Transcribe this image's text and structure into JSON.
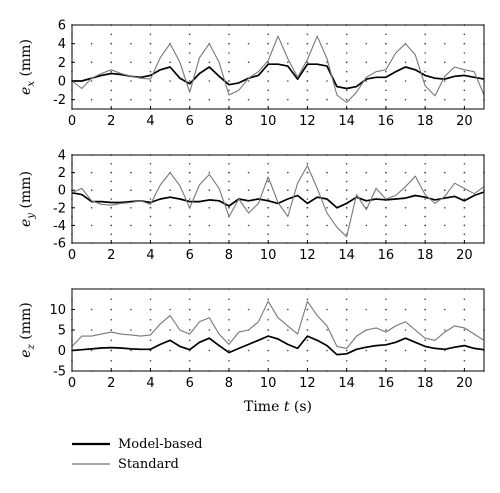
{
  "chart_data": [
    {
      "type": "line",
      "ylabel_var": "e",
      "ylabel_sub": "x",
      "ylabel_unit": " (mm)",
      "xlim": [
        0,
        21
      ],
      "ylim": [
        -3,
        6
      ],
      "xticks": [
        0,
        2,
        4,
        6,
        8,
        10,
        12,
        14,
        16,
        18,
        20
      ],
      "yticks": [
        -2,
        0,
        2,
        4,
        6
      ],
      "grid": "dotted",
      "series": [
        {
          "name": "Model-based",
          "color": "#000000",
          "x": [
            0,
            0.5,
            1,
            1.5,
            2,
            2.5,
            3,
            3.5,
            4,
            4.5,
            5,
            5.5,
            6,
            6.5,
            7,
            7.5,
            8,
            8.5,
            9,
            9.5,
            10,
            10.5,
            11,
            11.5,
            12,
            12.5,
            13,
            13.5,
            14,
            14.5,
            15,
            15.5,
            16,
            16.5,
            17,
            17.5,
            18,
            18.5,
            19,
            19.5,
            20,
            20.5,
            21
          ],
          "y": [
            0,
            0,
            0.3,
            0.6,
            0.8,
            0.7,
            0.5,
            0.4,
            0.6,
            1.2,
            1.5,
            0.3,
            -0.3,
            0.8,
            1.5,
            0.5,
            -0.4,
            -0.2,
            0.3,
            0.6,
            1.8,
            1.8,
            1.6,
            0.2,
            1.8,
            1.8,
            1.6,
            -0.6,
            -0.8,
            -0.6,
            0.2,
            0.4,
            0.4,
            1.0,
            1.5,
            1.2,
            0.6,
            0.3,
            0.2,
            0.5,
            0.6,
            0.4,
            0.2
          ]
        },
        {
          "name": "Standard",
          "color": "#777777",
          "x": [
            0,
            0.5,
            1,
            1.5,
            2,
            2.5,
            3,
            3.5,
            4,
            4.5,
            5,
            5.5,
            6,
            6.5,
            7,
            7.5,
            8,
            8.5,
            9,
            9.5,
            10,
            10.5,
            11,
            11.5,
            12,
            12.5,
            13,
            13.5,
            14,
            14.5,
            15,
            15.5,
            16,
            16.5,
            17,
            17.5,
            18,
            18.5,
            19,
            19.5,
            20,
            20.5,
            21
          ],
          "y": [
            0,
            -0.8,
            0.3,
            0.8,
            1.2,
            0.8,
            0.5,
            0.3,
            0.2,
            2.5,
            4.0,
            2.0,
            -1.2,
            2.5,
            4.0,
            2.0,
            -1.5,
            -1.0,
            0.3,
            1.0,
            2.2,
            4.8,
            2.4,
            0.4,
            2.3,
            4.8,
            2.4,
            -1.5,
            -2.3,
            -1.2,
            0.4,
            1.0,
            1.2,
            3.0,
            4.0,
            2.8,
            -0.5,
            -1.6,
            0.5,
            1.5,
            1.2,
            1.0,
            -1.5
          ]
        }
      ]
    },
    {
      "type": "line",
      "ylabel_var": "e",
      "ylabel_sub": "y",
      "ylabel_unit": " (mm)",
      "xlim": [
        0,
        21
      ],
      "ylim": [
        -6,
        4
      ],
      "xticks": [
        0,
        2,
        4,
        6,
        8,
        10,
        12,
        14,
        16,
        18,
        20
      ],
      "yticks": [
        -6,
        -4,
        -2,
        0,
        2,
        4
      ],
      "grid": "dotted",
      "series": [
        {
          "name": "Model-based",
          "color": "#000000",
          "x": [
            0,
            0.5,
            1,
            1.5,
            2,
            2.5,
            3,
            3.5,
            4,
            4.5,
            5,
            5.5,
            6,
            6.5,
            7,
            7.5,
            8,
            8.5,
            9,
            9.5,
            10,
            10.5,
            11,
            11.5,
            12,
            12.5,
            13,
            13.5,
            14,
            14.5,
            15,
            15.5,
            16,
            16.5,
            17,
            17.5,
            18,
            18.5,
            19,
            19.5,
            20,
            20.5,
            21
          ],
          "y": [
            -0.3,
            -0.5,
            -1.3,
            -1.3,
            -1.4,
            -1.4,
            -1.3,
            -1.2,
            -1.4,
            -1.0,
            -0.8,
            -1.0,
            -1.3,
            -1.3,
            -1.1,
            -1.2,
            -1.8,
            -1.0,
            -1.2,
            -1.0,
            -1.2,
            -1.5,
            -1.0,
            -0.6,
            -1.5,
            -0.8,
            -1.0,
            -2.0,
            -1.5,
            -0.8,
            -1.2,
            -1.0,
            -1.1,
            -1.0,
            -0.9,
            -0.6,
            -0.8,
            -1.1,
            -0.9,
            -0.7,
            -1.2,
            -0.6,
            -0.2
          ]
        },
        {
          "name": "Standard",
          "color": "#777777",
          "x": [
            0,
            0.5,
            1,
            1.5,
            2,
            2.5,
            3,
            3.5,
            4,
            4.5,
            5,
            5.5,
            6,
            6.5,
            7,
            7.5,
            8,
            8.5,
            9,
            9.5,
            10,
            10.5,
            11,
            11.5,
            12,
            12.5,
            13,
            13.5,
            14,
            14.5,
            15,
            15.5,
            16,
            16.5,
            17,
            17.5,
            18,
            18.5,
            19,
            19.5,
            20,
            20.5,
            21
          ],
          "y": [
            -0.3,
            0.2,
            -1.2,
            -1.6,
            -1.7,
            -1.5,
            -1.4,
            -1.2,
            -1.6,
            0.6,
            2.0,
            0.5,
            -2.0,
            0.6,
            1.8,
            0.2,
            -3.0,
            -1.0,
            -2.6,
            -1.5,
            1.5,
            -1.4,
            -3.0,
            0.8,
            2.8,
            0.2,
            -2.6,
            -4.2,
            -5.3,
            -0.5,
            -2.2,
            0.2,
            -1.0,
            -0.6,
            0.4,
            1.6,
            -0.5,
            -1.5,
            -0.7,
            0.8,
            0.2,
            -0.4,
            0.4
          ]
        }
      ]
    },
    {
      "type": "line",
      "ylabel_var": "e",
      "ylabel_sub": "z",
      "ylabel_unit": " (mm)",
      "xlabel_prefix": "Time ",
      "xlabel_var": "t",
      "xlabel_unit": " (s)",
      "xlim": [
        0,
        21
      ],
      "ylim": [
        -5,
        15
      ],
      "xticks": [
        0,
        2,
        4,
        6,
        8,
        10,
        12,
        14,
        16,
        18,
        20
      ],
      "yticks": [
        -5,
        0,
        5,
        10
      ],
      "grid": "dotted",
      "series": [
        {
          "name": "Model-based",
          "color": "#000000",
          "x": [
            0,
            0.5,
            1,
            1.5,
            2,
            2.5,
            3,
            3.5,
            4,
            4.5,
            5,
            5.5,
            6,
            6.5,
            7,
            7.5,
            8,
            8.5,
            9,
            9.5,
            10,
            10.5,
            11,
            11.5,
            12,
            12.5,
            13,
            13.5,
            14,
            14.5,
            15,
            15.5,
            16,
            16.5,
            17,
            17.5,
            18,
            18.5,
            19,
            19.5,
            20,
            20.5,
            21
          ],
          "y": [
            0,
            0.2,
            0.4,
            0.6,
            0.7,
            0.6,
            0.4,
            0.3,
            0.3,
            1.5,
            2.5,
            1.0,
            0.2,
            2.0,
            3.0,
            1.2,
            -0.5,
            0.5,
            1.5,
            2.5,
            3.5,
            2.8,
            1.5,
            0.5,
            3.5,
            2.5,
            1.2,
            -1.0,
            -0.8,
            0.3,
            0.8,
            1.2,
            1.4,
            2.0,
            3.0,
            2.0,
            1.0,
            0.5,
            0.3,
            0.8,
            1.2,
            0.5,
            0.2
          ]
        },
        {
          "name": "Standard",
          "color": "#777777",
          "x": [
            0,
            0.5,
            1,
            1.5,
            2,
            2.5,
            3,
            3.5,
            4,
            4.5,
            5,
            5.5,
            6,
            6.5,
            7,
            7.5,
            8,
            8.5,
            9,
            9.5,
            10,
            10.5,
            11,
            11.5,
            12,
            12.5,
            13,
            13.5,
            14,
            14.5,
            15,
            15.5,
            16,
            16.5,
            17,
            17.5,
            18,
            18.5,
            19,
            19.5,
            20,
            20.5,
            21
          ],
          "y": [
            1,
            3.5,
            3.5,
            4.0,
            4.5,
            4.0,
            3.8,
            3.5,
            3.8,
            6.5,
            8.5,
            5.0,
            4.0,
            7.0,
            8.0,
            4.0,
            1.5,
            4.5,
            5.0,
            7.0,
            12.0,
            8.0,
            6.0,
            4.0,
            12.0,
            8.5,
            6.0,
            1.0,
            0.5,
            3.5,
            5.0,
            5.5,
            4.5,
            6.0,
            7.0,
            5.0,
            3.0,
            2.5,
            4.5,
            6.0,
            5.5,
            4.0,
            2.5
          ]
        }
      ]
    }
  ],
  "legend": {
    "placement": "bottom-left",
    "items": [
      {
        "label": "Model-based",
        "color": "#000000"
      },
      {
        "label": "Standard",
        "color": "#777777"
      }
    ]
  }
}
